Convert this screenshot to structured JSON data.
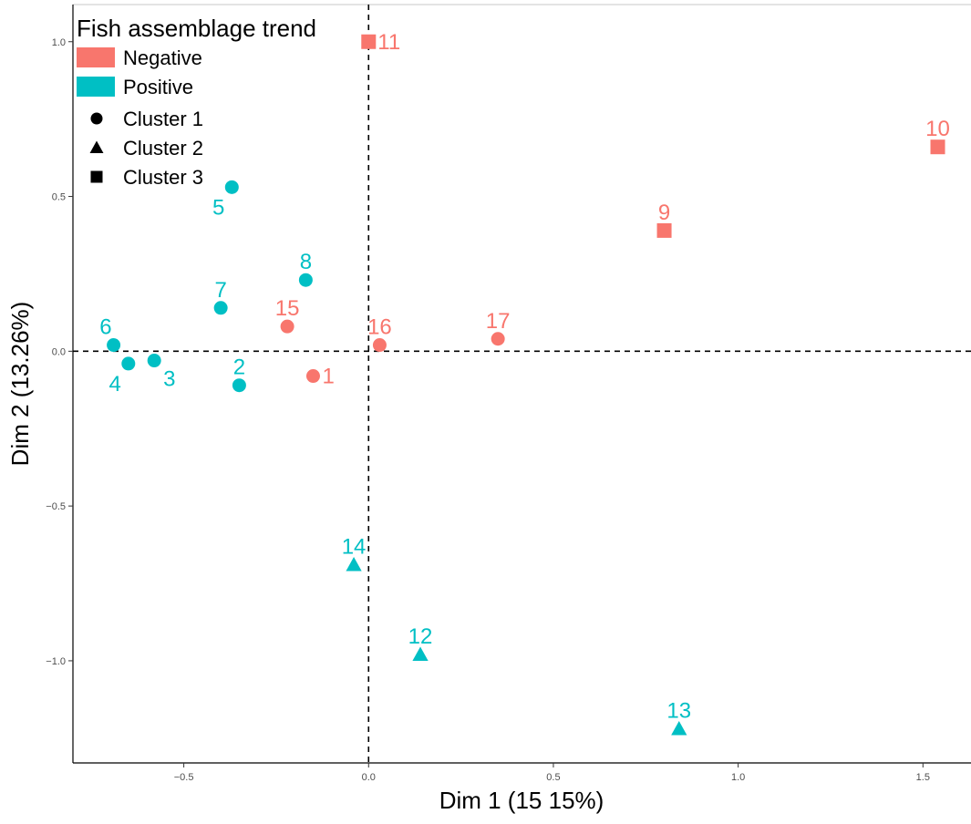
{
  "chart_data": {
    "type": "scatter",
    "xlabel": "Dim 1 (15 15%)",
    "ylabel": "Dim 2 (13.26%)",
    "xlim": [
      -0.8,
      1.63
    ],
    "ylim": [
      -1.33,
      1.12
    ],
    "x_ticks": [
      {
        "value": -0.5,
        "label": "−0.5"
      },
      {
        "value": 0.0,
        "label": "0.0"
      },
      {
        "value": 0.5,
        "label": "0.5"
      },
      {
        "value": 1.0,
        "label": "1.0"
      },
      {
        "value": 1.5,
        "label": "1.5"
      }
    ],
    "y_ticks": [
      {
        "value": 1.0,
        "label": "1.0"
      },
      {
        "value": 0.5,
        "label": "0.5"
      },
      {
        "value": 0.0,
        "label": "0.0"
      },
      {
        "value": -0.5,
        "label": "−0.5"
      },
      {
        "value": -1.0,
        "label": "−1.0"
      }
    ],
    "grid": false,
    "reference_lines": {
      "x": 0,
      "y": 0,
      "style": "dashed"
    },
    "legend": {
      "title": "Fish assemblage trend",
      "placement": "top-left",
      "color_entries": [
        {
          "label": "Negative",
          "color": "#F8766D"
        },
        {
          "label": "Positive",
          "color": "#00BFC4"
        }
      ],
      "shape_entries": [
        {
          "label": "Cluster 1",
          "shape": "circle"
        },
        {
          "label": "Cluster 2",
          "shape": "triangle"
        },
        {
          "label": "Cluster 3",
          "shape": "square"
        }
      ]
    },
    "points": [
      {
        "label": "1",
        "x": -0.15,
        "y": -0.08,
        "trend": "Negative",
        "cluster": "Cluster 1",
        "label_pos": "right"
      },
      {
        "label": "2",
        "x": -0.35,
        "y": -0.11,
        "trend": "Positive",
        "cluster": "Cluster 1",
        "label_pos": "top"
      },
      {
        "label": "3",
        "x": -0.58,
        "y": -0.03,
        "trend": "Positive",
        "cluster": "Cluster 1",
        "label_pos": "bottom-right"
      },
      {
        "label": "4",
        "x": -0.65,
        "y": -0.04,
        "trend": "Positive",
        "cluster": "Cluster 1",
        "label_pos": "bottom-left"
      },
      {
        "label": "5",
        "x": -0.37,
        "y": 0.53,
        "trend": "Positive",
        "cluster": "Cluster 1",
        "label_pos": "bottom-left"
      },
      {
        "label": "6",
        "x": -0.69,
        "y": 0.02,
        "trend": "Positive",
        "cluster": "Cluster 1",
        "label_pos": "top-left"
      },
      {
        "label": "7",
        "x": -0.4,
        "y": 0.14,
        "trend": "Positive",
        "cluster": "Cluster 1",
        "label_pos": "top"
      },
      {
        "label": "8",
        "x": -0.17,
        "y": 0.23,
        "trend": "Positive",
        "cluster": "Cluster 1",
        "label_pos": "top"
      },
      {
        "label": "9",
        "x": 0.8,
        "y": 0.39,
        "trend": "Negative",
        "cluster": "Cluster 3",
        "label_pos": "top"
      },
      {
        "label": "10",
        "x": 1.54,
        "y": 0.66,
        "trend": "Negative",
        "cluster": "Cluster 3",
        "label_pos": "top"
      },
      {
        "label": "11",
        "x": 0.0,
        "y": 1.0,
        "trend": "Negative",
        "cluster": "Cluster 3",
        "label_pos": "right"
      },
      {
        "label": "12",
        "x": 0.14,
        "y": -0.98,
        "trend": "Positive",
        "cluster": "Cluster 2",
        "label_pos": "top"
      },
      {
        "label": "13",
        "x": 0.84,
        "y": -1.22,
        "trend": "Positive",
        "cluster": "Cluster 2",
        "label_pos": "top"
      },
      {
        "label": "14",
        "x": -0.04,
        "y": -0.69,
        "trend": "Positive",
        "cluster": "Cluster 2",
        "label_pos": "top"
      },
      {
        "label": "15",
        "x": -0.22,
        "y": 0.08,
        "trend": "Negative",
        "cluster": "Cluster 1",
        "label_pos": "top"
      },
      {
        "label": "16",
        "x": 0.03,
        "y": 0.02,
        "trend": "Negative",
        "cluster": "Cluster 1",
        "label_pos": "top"
      },
      {
        "label": "17",
        "x": 0.35,
        "y": 0.04,
        "trend": "Negative",
        "cluster": "Cluster 1",
        "label_pos": "top"
      }
    ]
  }
}
